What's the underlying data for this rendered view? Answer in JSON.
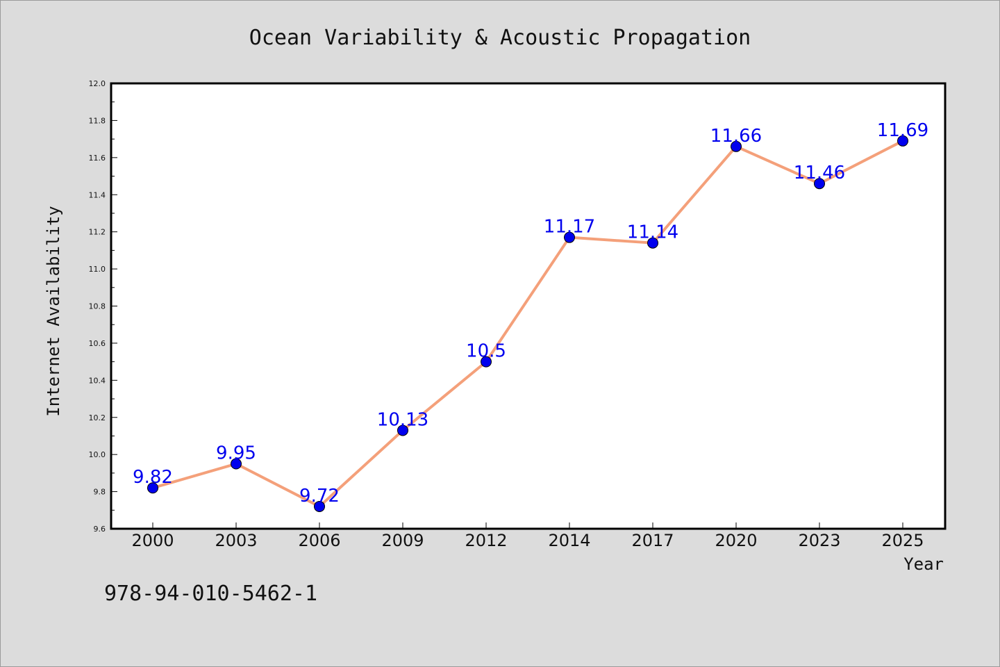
{
  "chart_data": {
    "type": "line",
    "title": "Ocean Variability & Acoustic Propagation",
    "xlabel": "Year",
    "ylabel": "Internet Availability",
    "categories": [
      "2000",
      "2003",
      "2006",
      "2009",
      "2012",
      "2014",
      "2017",
      "2020",
      "2023",
      "2025"
    ],
    "series": [
      {
        "values": [
          9.82,
          9.95,
          9.72,
          10.13,
          10.5,
          11.17,
          11.14,
          11.66,
          11.46,
          11.69
        ],
        "line_color": "#f4a07a",
        "marker_color": "#0000ee"
      }
    ],
    "data_labels": [
      "9.82",
      "9.95",
      "9.72",
      "10.13",
      "10.5",
      "11.17",
      "11.14",
      "11.66",
      "11.46",
      "11.69"
    ],
    "ylim": [
      9.6,
      12.0
    ],
    "yticks": [
      "9.6",
      "9.8",
      "10.0",
      "10.2",
      "10.4",
      "10.6",
      "10.8",
      "11.0",
      "11.2",
      "11.4",
      "11.6",
      "11.8",
      "12.0"
    ],
    "grid": false,
    "legend": "none"
  },
  "footer": {
    "isbn": "978-94-010-5462-1"
  }
}
